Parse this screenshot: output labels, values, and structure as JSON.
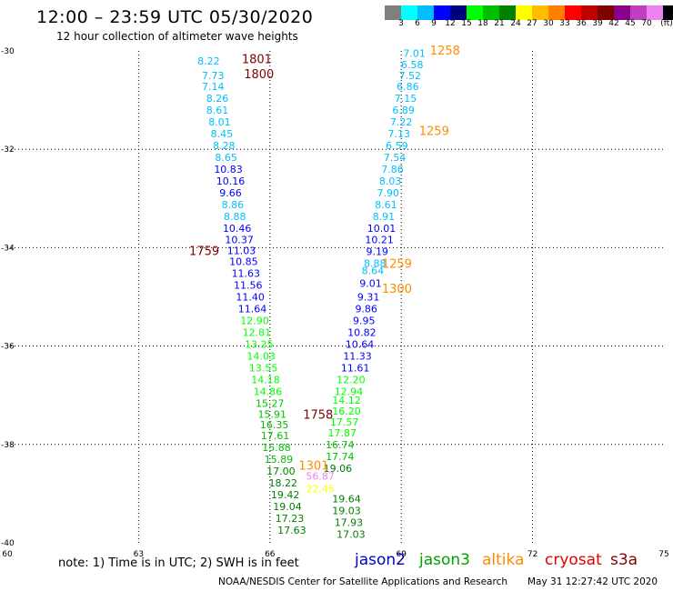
{
  "header": {
    "title": "12:00 – 23:59 UTC 05/30/2020",
    "subtitle": "12 hour collection of altimeter wave heights"
  },
  "legend": {
    "colors": [
      "#7f7f7f",
      "#00ffff",
      "#00bfff",
      "#0000ff",
      "#00007f",
      "#00ff00",
      "#00bf00",
      "#008000",
      "#ffff00",
      "#ffbf00",
      "#ff8000",
      "#ff0000",
      "#bf0000",
      "#7f0000",
      "#8b008b",
      "#bf40bf",
      "#ee82ee",
      "#000000"
    ],
    "labels": [
      "3",
      "6",
      "9",
      "12",
      "15",
      "18",
      "21",
      "24",
      "27",
      "30",
      "33",
      "36",
      "39",
      "42",
      "45",
      "70",
      "(ft)"
    ]
  },
  "footer": {
    "note": "note:  1) Time is in UTC; 2) SWH is in feet",
    "satellites": [
      {
        "name": "jason2",
        "color": "#0000cc"
      },
      {
        "name": "jason3",
        "color": "#00a000"
      },
      {
        "name": "altika",
        "color": "#ff8c00"
      },
      {
        "name": "cryosat",
        "color": "#e00000"
      },
      {
        "name": "s3a",
        "color": "#800000"
      }
    ],
    "credit": "NOAA/NESDIS Center for Satellite Applications and Research",
    "timestamp": "May 31 12:27:42 UTC 2020"
  },
  "chart_data": {
    "type": "scatter",
    "xlim": [
      60,
      75
    ],
    "ylim": [
      -40,
      -30
    ],
    "x_ticks": [
      60,
      63,
      66,
      69,
      72,
      75
    ],
    "y_ticks": [
      -30,
      -32,
      -34,
      -36,
      -38,
      -40
    ],
    "grid": true,
    "series": [
      {
        "name": "track_west",
        "points": [
          {
            "x": 64.6,
            "y": -30.2,
            "label": "8.22",
            "color": "#00bfff"
          },
          {
            "x": 64.7,
            "y": -30.5,
            "label": "7.73",
            "color": "#00bfff"
          },
          {
            "x": 64.7,
            "y": -30.72,
            "label": "7.14",
            "color": "#00bfff"
          },
          {
            "x": 64.8,
            "y": -30.96,
            "label": "8.26",
            "color": "#00bfff"
          },
          {
            "x": 64.8,
            "y": -31.2,
            "label": "8.61",
            "color": "#00bfff"
          },
          {
            "x": 64.85,
            "y": -31.44,
            "label": "8.01",
            "color": "#00bfff"
          },
          {
            "x": 64.9,
            "y": -31.68,
            "label": "8.45",
            "color": "#00bfff"
          },
          {
            "x": 64.95,
            "y": -31.92,
            "label": "8.28",
            "color": "#00bfff"
          },
          {
            "x": 65.0,
            "y": -32.16,
            "label": "8.65",
            "color": "#00bfff"
          },
          {
            "x": 65.05,
            "y": -32.4,
            "label": "10.83",
            "color": "#0000ff"
          },
          {
            "x": 65.1,
            "y": -32.64,
            "label": "10.16",
            "color": "#0000ff"
          },
          {
            "x": 65.1,
            "y": -32.88,
            "label": "9.66",
            "color": "#0000ff"
          },
          {
            "x": 65.15,
            "y": -33.12,
            "label": "8.86",
            "color": "#00bfff"
          },
          {
            "x": 65.2,
            "y": -33.36,
            "label": "8.88",
            "color": "#00bfff"
          },
          {
            "x": 65.25,
            "y": -33.6,
            "label": "10.46",
            "color": "#0000ff"
          },
          {
            "x": 65.3,
            "y": -33.84,
            "label": "10.37",
            "color": "#0000ff"
          },
          {
            "x": 65.35,
            "y": -34.06,
            "label": "11.03",
            "color": "#0000ff"
          },
          {
            "x": 65.4,
            "y": -34.28,
            "label": "10.85",
            "color": "#0000ff"
          },
          {
            "x": 65.45,
            "y": -34.52,
            "label": "11.63",
            "color": "#0000ff"
          },
          {
            "x": 65.5,
            "y": -34.76,
            "label": "11.56",
            "color": "#0000ff"
          },
          {
            "x": 65.55,
            "y": -35.0,
            "label": "11.40",
            "color": "#0000ff"
          },
          {
            "x": 65.6,
            "y": -35.24,
            "label": "11.64",
            "color": "#0000ff"
          },
          {
            "x": 65.65,
            "y": -35.48,
            "label": "12.90",
            "color": "#00ff00"
          },
          {
            "x": 65.7,
            "y": -35.72,
            "label": "12.81",
            "color": "#00ff00"
          },
          {
            "x": 65.75,
            "y": -35.96,
            "label": "13.25",
            "color": "#00ff00"
          },
          {
            "x": 65.8,
            "y": -36.2,
            "label": "14.03",
            "color": "#00ff00"
          },
          {
            "x": 65.85,
            "y": -36.44,
            "label": "13.55",
            "color": "#00ff00"
          },
          {
            "x": 65.9,
            "y": -36.68,
            "label": "14.18",
            "color": "#00ff00"
          },
          {
            "x": 65.95,
            "y": -36.92,
            "label": "14.86",
            "color": "#00ff00"
          },
          {
            "x": 66.0,
            "y": -37.16,
            "label": "15.27",
            "color": "#00bf00"
          },
          {
            "x": 66.05,
            "y": -37.38,
            "label": "15.91",
            "color": "#00bf00"
          },
          {
            "x": 66.1,
            "y": -37.6,
            "label": "16.35",
            "color": "#00bf00"
          },
          {
            "x": 66.12,
            "y": -37.82,
            "label": "17.61",
            "color": "#00bf00"
          },
          {
            "x": 66.15,
            "y": -38.06,
            "label": "15.88",
            "color": "#00bf00"
          },
          {
            "x": 66.2,
            "y": -38.3,
            "label": "15.89",
            "color": "#00bf00"
          },
          {
            "x": 66.25,
            "y": -38.54,
            "label": "17.00",
            "color": "#008000"
          },
          {
            "x": 66.3,
            "y": -38.78,
            "label": "18.22",
            "color": "#008000"
          },
          {
            "x": 66.35,
            "y": -39.02,
            "label": "19.42",
            "color": "#008000"
          },
          {
            "x": 66.4,
            "y": -39.26,
            "label": "19.04",
            "color": "#008000"
          },
          {
            "x": 66.45,
            "y": -39.5,
            "label": "17.23",
            "color": "#008000"
          },
          {
            "x": 66.5,
            "y": -39.74,
            "label": "17.63",
            "color": "#008000"
          }
        ]
      },
      {
        "name": "track_east",
        "points": [
          {
            "x": 69.3,
            "y": -30.05,
            "label": "7.01",
            "color": "#00bfff"
          },
          {
            "x": 69.25,
            "y": -30.28,
            "label": "6.58",
            "color": "#00bfff"
          },
          {
            "x": 69.2,
            "y": -30.5,
            "label": "7.52",
            "color": "#00bfff"
          },
          {
            "x": 69.15,
            "y": -30.72,
            "label": "6.86",
            "color": "#00bfff"
          },
          {
            "x": 69.1,
            "y": -30.96,
            "label": "7.15",
            "color": "#00bfff"
          },
          {
            "x": 69.05,
            "y": -31.2,
            "label": "6.89",
            "color": "#00bfff"
          },
          {
            "x": 69.0,
            "y": -31.44,
            "label": "7.22",
            "color": "#00bfff"
          },
          {
            "x": 68.95,
            "y": -31.68,
            "label": "7.13",
            "color": "#00bfff"
          },
          {
            "x": 68.9,
            "y": -31.92,
            "label": "6.59",
            "color": "#00bfff"
          },
          {
            "x": 68.85,
            "y": -32.16,
            "label": "7.54",
            "color": "#00bfff"
          },
          {
            "x": 68.8,
            "y": -32.4,
            "label": "7.86",
            "color": "#00bfff"
          },
          {
            "x": 68.75,
            "y": -32.64,
            "label": "8.03",
            "color": "#00bfff"
          },
          {
            "x": 68.7,
            "y": -32.88,
            "label": "7.90",
            "color": "#00bfff"
          },
          {
            "x": 68.65,
            "y": -33.12,
            "label": "8.61",
            "color": "#00bfff"
          },
          {
            "x": 68.6,
            "y": -33.36,
            "label": "8.91",
            "color": "#00bfff"
          },
          {
            "x": 68.55,
            "y": -33.6,
            "label": "10.01",
            "color": "#0000ff"
          },
          {
            "x": 68.5,
            "y": -33.84,
            "label": "10.21",
            "color": "#0000ff"
          },
          {
            "x": 68.45,
            "y": -34.08,
            "label": "9.19",
            "color": "#0000ff"
          },
          {
            "x": 68.4,
            "y": -34.32,
            "label": "8.88",
            "color": "#00bfff"
          },
          {
            "x": 68.35,
            "y": -34.46,
            "label": "8.64",
            "color": "#00bfff"
          },
          {
            "x": 68.3,
            "y": -34.72,
            "label": "9.01",
            "color": "#0000ff"
          },
          {
            "x": 68.25,
            "y": -35.0,
            "label": "9.31",
            "color": "#0000ff"
          },
          {
            "x": 68.2,
            "y": -35.24,
            "label": "9.86",
            "color": "#0000ff"
          },
          {
            "x": 68.15,
            "y": -35.48,
            "label": "9.95",
            "color": "#0000ff"
          },
          {
            "x": 68.1,
            "y": -35.72,
            "label": "10.82",
            "color": "#0000ff"
          },
          {
            "x": 68.05,
            "y": -35.96,
            "label": "10.64",
            "color": "#0000ff"
          },
          {
            "x": 68.0,
            "y": -36.2,
            "label": "11.33",
            "color": "#0000ff"
          },
          {
            "x": 67.95,
            "y": -36.44,
            "label": "11.61",
            "color": "#0000ff"
          },
          {
            "x": 67.85,
            "y": -36.68,
            "label": "12.20",
            "color": "#00ff00"
          },
          {
            "x": 67.8,
            "y": -36.92,
            "label": "12.94",
            "color": "#00ff00"
          },
          {
            "x": 67.75,
            "y": -37.1,
            "label": "14.12",
            "color": "#00ff00"
          },
          {
            "x": 67.75,
            "y": -37.32,
            "label": "16.20",
            "color": "#00ff00"
          },
          {
            "x": 67.7,
            "y": -37.54,
            "label": "17.57",
            "color": "#00ff00"
          },
          {
            "x": 67.65,
            "y": -37.76,
            "label": "17.87",
            "color": "#00ff00"
          },
          {
            "x": 67.6,
            "y": -38.0,
            "label": "16.74",
            "color": "#00bf00"
          },
          {
            "x": 67.6,
            "y": -38.24,
            "label": "17.74",
            "color": "#00bf00"
          },
          {
            "x": 67.55,
            "y": -38.48,
            "label": "19.06",
            "color": "#008000"
          },
          {
            "x": 67.75,
            "y": -39.1,
            "label": "19.64",
            "color": "#008000"
          },
          {
            "x": 67.75,
            "y": -39.34,
            "label": "19.03",
            "color": "#008000"
          },
          {
            "x": 67.8,
            "y": -39.58,
            "label": "17.93",
            "color": "#008000"
          },
          {
            "x": 67.85,
            "y": -39.82,
            "label": "17.03",
            "color": "#008000"
          }
        ]
      },
      {
        "name": "other",
        "points": [
          {
            "x": 67.15,
            "y": -38.64,
            "label": "56.87",
            "color": "#ee82ee"
          },
          {
            "x": 67.15,
            "y": -38.9,
            "label": "22.45",
            "color": "#ffff00"
          }
        ]
      }
    ],
    "time_labels": [
      {
        "x": 65.7,
        "y": -30.16,
        "label": "1801",
        "color": "#7f0000"
      },
      {
        "x": 65.75,
        "y": -30.46,
        "label": "1800",
        "color": "#7f0000"
      },
      {
        "x": 70.0,
        "y": -29.98,
        "label": "1258",
        "color": "#ff8c00"
      },
      {
        "x": 69.75,
        "y": -31.62,
        "label": "1259",
        "color": "#ff8c00"
      },
      {
        "x": 64.5,
        "y": -34.06,
        "label": "1759",
        "color": "#7f0000"
      },
      {
        "x": 68.9,
        "y": -34.32,
        "label": "1259",
        "color": "#ff8c00"
      },
      {
        "x": 68.9,
        "y": -34.82,
        "label": "1300",
        "color": "#ff8c00"
      },
      {
        "x": 67.1,
        "y": -37.38,
        "label": "1758",
        "color": "#7f0000"
      },
      {
        "x": 67.0,
        "y": -38.42,
        "label": "1301",
        "color": "#ff8c00"
      }
    ]
  }
}
